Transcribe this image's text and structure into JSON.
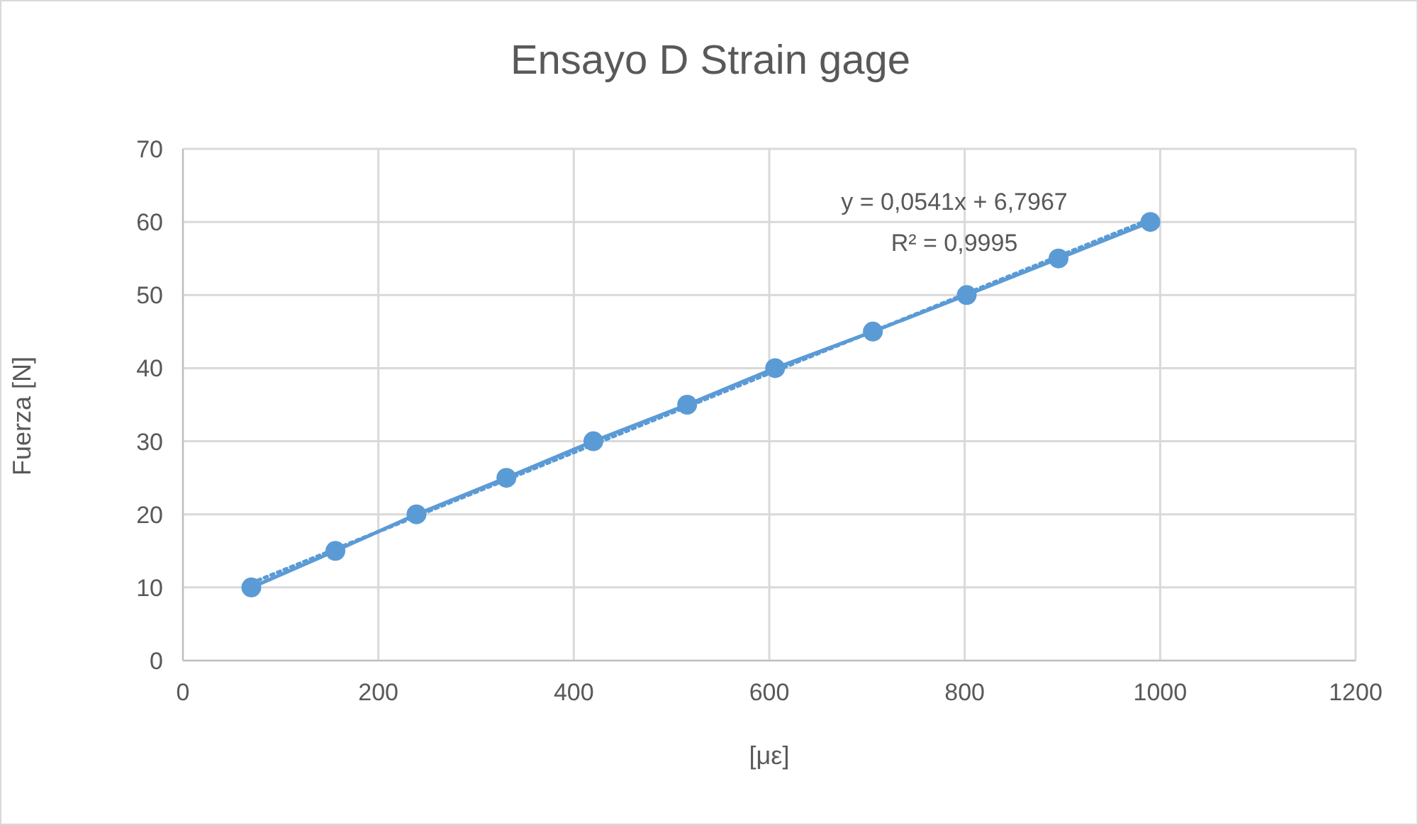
{
  "chart_data": {
    "type": "line",
    "title": "Ensayo D Strain gage",
    "xlabel": "[με]",
    "ylabel": "Fuerza [N]",
    "xlim": [
      0,
      1200
    ],
    "xticks": [
      0,
      200,
      400,
      600,
      800,
      1000,
      1200
    ],
    "ylim": [
      0,
      70
    ],
    "yticks": [
      0,
      10,
      20,
      30,
      40,
      50,
      60,
      70
    ],
    "grid": true,
    "legend": false,
    "series": [
      {
        "color": "#5b9bd5",
        "marker": "circle",
        "line_style": "solid",
        "x": [
          70,
          156,
          239,
          331,
          420,
          516,
          606,
          706,
          802,
          896,
          990
        ],
        "values": [
          10,
          15,
          20,
          25,
          30,
          35,
          40,
          45,
          50,
          55,
          60
        ]
      },
      {
        "type": "line",
        "color": "#5b9bd5",
        "marker": "none",
        "line_style": "dotted",
        "x": [
          70,
          990
        ],
        "values": [
          10.6,
          60.4
        ]
      }
    ],
    "annotations": [
      "y = 0,0541x + 6,7967",
      "R² = 0,9995"
    ]
  }
}
